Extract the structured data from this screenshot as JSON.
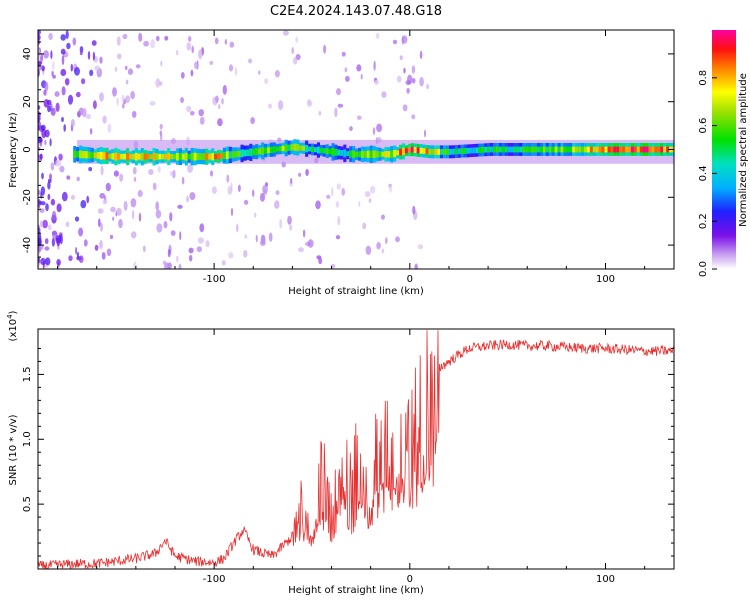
{
  "title": "C2E4.2024.143.07.48.G18",
  "colors": {
    "line": "#e83030",
    "axis": "#000000",
    "ridge_low": "#6010e0",
    "ridge_high": "#e02010"
  },
  "chart_data": [
    {
      "type": "heatmap",
      "xlabel": "Height of straight line (km)",
      "ylabel": "Frequency (Hz)",
      "xlim": [
        -190,
        135
      ],
      "ylim": [
        -50,
        50
      ],
      "x_ticks": [
        -100,
        0,
        100
      ],
      "x_tick_labels": [
        "-100",
        "0",
        "100"
      ],
      "y_ticks": [
        -40,
        -20,
        0,
        20,
        40
      ],
      "y_tick_labels": [
        "-40",
        "-20",
        "0",
        "20",
        "40"
      ],
      "grid": false,
      "colorbar": {
        "label": "Normalized spectral amplitude",
        "range": [
          0,
          1
        ],
        "ticks": [
          0,
          0.2,
          0.4,
          0.6,
          0.8
        ],
        "tick_labels": [
          "0.0",
          "0.2",
          "0.4",
          "0.6",
          "0.8"
        ],
        "position": "right"
      },
      "ridge": {
        "description_of_values": "peak normalized amplitude near 0 Hz versus height",
        "x": [
          -170,
          -150,
          -130,
          -110,
          -100,
          -90,
          -80,
          -70,
          -60,
          -50,
          -40,
          -30,
          -20,
          -10,
          0,
          10,
          20,
          40,
          60,
          80,
          100,
          120,
          135
        ],
        "frequency": [
          -2,
          -3,
          -3,
          -3,
          -3,
          -2,
          -1,
          0,
          1,
          0,
          -1,
          -2,
          -2,
          -2,
          0,
          -1,
          -1,
          0,
          0,
          0,
          0,
          0,
          0
        ],
        "amplitude": [
          0.6,
          0.8,
          0.75,
          0.6,
          0.85,
          0.5,
          0.55,
          0.6,
          0.6,
          0.5,
          0.45,
          0.5,
          0.6,
          0.7,
          0.9,
          0.75,
          0.45,
          0.45,
          0.5,
          0.6,
          0.85,
          0.9,
          0.8
        ]
      }
    },
    {
      "type": "line",
      "xlabel": "Height of straight line (km)",
      "ylabel": "SNR (10 * v/v)",
      "y_scale_note": "(x10^4)",
      "xlim": [
        -190,
        135
      ],
      "ylim": [
        0,
        1.85
      ],
      "x_ticks": [
        -100,
        0,
        100
      ],
      "x_tick_labels": [
        "-100",
        "0",
        "100"
      ],
      "y_ticks": [
        0.5,
        1.0,
        1.5
      ],
      "y_tick_labels": [
        "0.5",
        "1.0",
        "1.5"
      ],
      "grid": false,
      "series": [
        {
          "x": [
            -190,
            -180,
            -170,
            -160,
            -150,
            -140,
            -130,
            -125,
            -120,
            -110,
            -100,
            -95,
            -90,
            -85,
            -80,
            -75,
            -70,
            -60,
            -55,
            -50,
            -45,
            -40,
            -35,
            -30,
            -25,
            -20,
            -15,
            -10,
            -5,
            0,
            5,
            10,
            15,
            20,
            25,
            30,
            40,
            50,
            60,
            70,
            80,
            90,
            100,
            110,
            120,
            135
          ],
          "y": [
            0.02,
            0.03,
            0.04,
            0.04,
            0.06,
            0.08,
            0.12,
            0.22,
            0.1,
            0.06,
            0.05,
            0.08,
            0.2,
            0.3,
            0.15,
            0.12,
            0.1,
            0.25,
            0.55,
            0.4,
            0.7,
            0.45,
            0.8,
            0.6,
            0.95,
            0.7,
            1.0,
            0.9,
            1.1,
            1.0,
            1.2,
            1.4,
            1.55,
            1.6,
            1.65,
            1.7,
            1.72,
            1.73,
            1.72,
            1.72,
            1.71,
            1.7,
            1.7,
            1.69,
            1.68,
            1.68
          ]
        }
      ]
    }
  ]
}
